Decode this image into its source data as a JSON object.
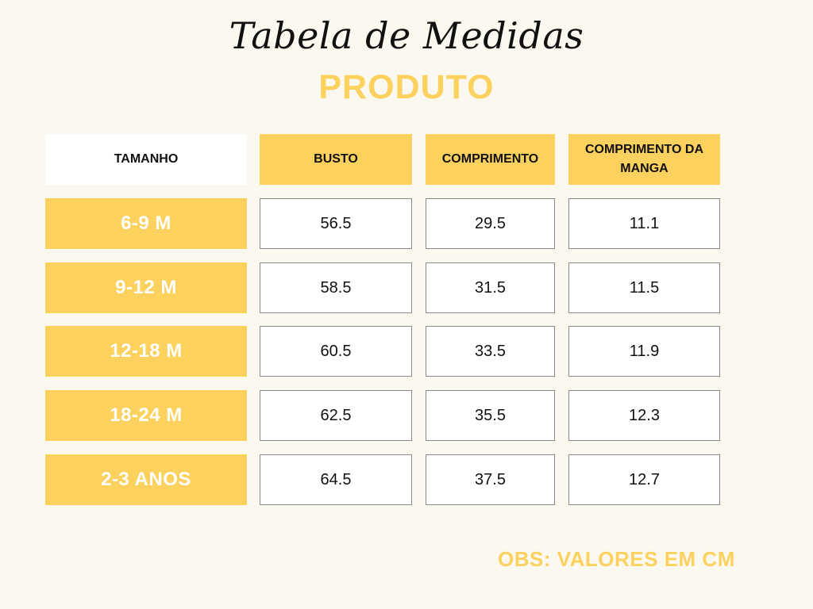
{
  "title": "Tabela de Medidas",
  "subtitle": "PRODUTO",
  "headers": [
    "TAMANHO",
    "BUSTO",
    "COMPRIMENTO",
    "COMPRIMENTO DA MANGA"
  ],
  "rows": [
    {
      "size": "6-9 M",
      "busto": "56.5",
      "comprimento": "29.5",
      "manga": "11.1"
    },
    {
      "size": "9-12 M",
      "busto": "58.5",
      "comprimento": "31.5",
      "manga": "11.5"
    },
    {
      "size": "12-18 M",
      "busto": "60.5",
      "comprimento": "33.5",
      "manga": "11.9"
    },
    {
      "size": "18-24 M",
      "busto": "62.5",
      "comprimento": "35.5",
      "manga": "12.3"
    },
    {
      "size": "2-3 ANOS",
      "busto": "64.5",
      "comprimento": "37.5",
      "manga": "12.7"
    }
  ],
  "note": "OBS: VALORES EM CM",
  "colors": {
    "accent": "#fdd15e",
    "background": "#faf8ef",
    "border": "#8a8a8a"
  }
}
